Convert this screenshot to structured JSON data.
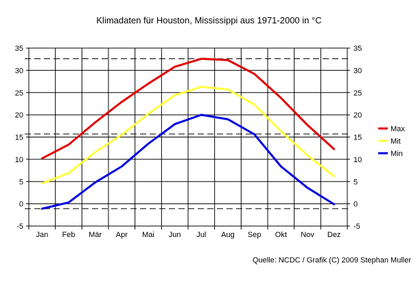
{
  "colors": {
    "Max": "#e00000",
    "Mit": "#ffff40",
    "Min": "#0000e0",
    "grid": "#000000"
  },
  "chart_data": {
    "type": "line",
    "title": "Klimadaten für Houston, Mississippi aus 1971-2000 in °C",
    "xlabel": "",
    "ylabel": "",
    "categories": [
      "Jan",
      "Feb",
      "Mär",
      "Apr",
      "Mai",
      "Jun",
      "Jul",
      "Aug",
      "Sep",
      "Okt",
      "Nov",
      "Dez"
    ],
    "ylim": [
      -5,
      35
    ],
    "yticks": [
      -5,
      0,
      5,
      10,
      15,
      20,
      25,
      30,
      35
    ],
    "grid": true,
    "legend": "right",
    "reference_lines": [
      32.6,
      15.7,
      -1.1
    ],
    "series": [
      {
        "name": "Max",
        "values": [
          10.2,
          13.3,
          18.3,
          22.9,
          27.0,
          30.8,
          32.6,
          32.3,
          29.2,
          23.8,
          17.7,
          12.3
        ]
      },
      {
        "name": "Mit",
        "values": [
          4.6,
          6.9,
          11.6,
          15.5,
          20.2,
          24.4,
          26.3,
          25.7,
          22.3,
          16.3,
          10.9,
          6.2
        ]
      },
      {
        "name": "Min",
        "values": [
          -1.1,
          0.3,
          4.8,
          8.4,
          13.5,
          17.9,
          20.0,
          19.0,
          15.6,
          8.4,
          3.6,
          -0.1
        ]
      }
    ]
  },
  "source": "Quelle: NCDC / Grafik (C) 2009 Stephan Muller"
}
